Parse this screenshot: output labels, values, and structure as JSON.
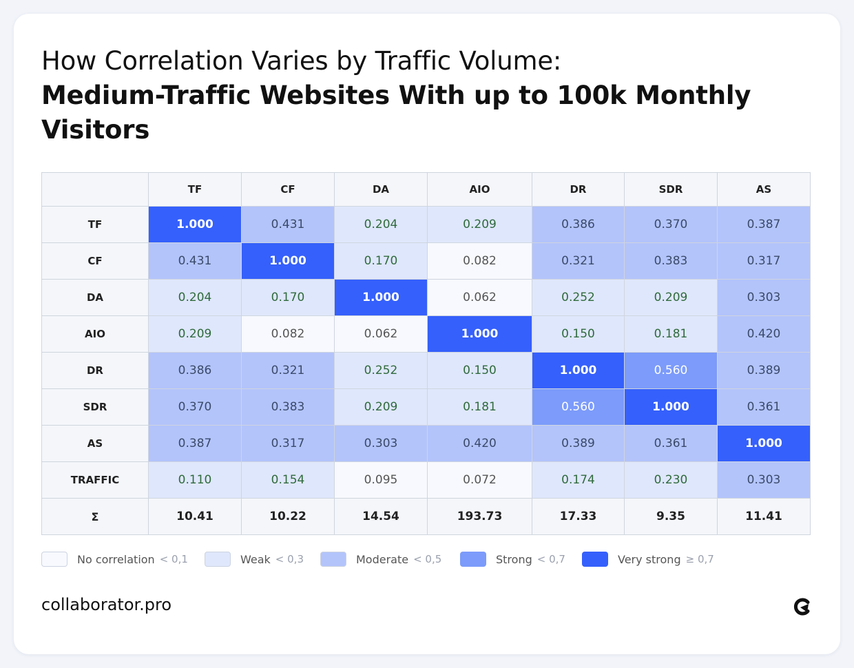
{
  "title": {
    "line1": "How Correlation Varies by Traffic Volume:",
    "line2": "Medium-Traffic Websites With up to 100k Monthly Visitors"
  },
  "chart_data": {
    "type": "heatmap",
    "columns": [
      "TF",
      "CF",
      "DA",
      "AIO",
      "DR",
      "SDR",
      "AS"
    ],
    "rows": [
      {
        "label": "TF",
        "values": [
          1.0,
          0.431,
          0.204,
          0.209,
          0.386,
          0.37,
          0.387
        ]
      },
      {
        "label": "CF",
        "values": [
          0.431,
          1.0,
          0.17,
          0.082,
          0.321,
          0.383,
          0.317
        ]
      },
      {
        "label": "DA",
        "values": [
          0.204,
          0.17,
          1.0,
          0.062,
          0.252,
          0.209,
          0.303
        ]
      },
      {
        "label": "AIO",
        "values": [
          0.209,
          0.082,
          0.062,
          1.0,
          0.15,
          0.181,
          0.42
        ]
      },
      {
        "label": "DR",
        "values": [
          0.386,
          0.321,
          0.252,
          0.15,
          1.0,
          0.56,
          0.389
        ]
      },
      {
        "label": "SDR",
        "values": [
          0.37,
          0.383,
          0.209,
          0.181,
          0.56,
          1.0,
          0.361
        ]
      },
      {
        "label": "AS",
        "values": [
          0.387,
          0.317,
          0.303,
          0.42,
          0.389,
          0.361,
          1.0
        ]
      },
      {
        "label": "TRAFFIC",
        "values": [
          0.11,
          0.154,
          0.095,
          0.072,
          0.174,
          0.23,
          0.303
        ]
      }
    ],
    "sum_row": {
      "label": "Σ",
      "values": [
        "10.41",
        "10.22",
        "14.54",
        "193.73",
        "17.33",
        "9.35",
        "11.41"
      ]
    },
    "legend": [
      {
        "label": "No correlation",
        "threshold": "< 0,1",
        "min": 0.0,
        "color": "#f7f9fe",
        "text_color": "#555555"
      },
      {
        "label": "Weak",
        "threshold": "< 0,3",
        "min": 0.1,
        "color": "#dfe7fc",
        "text_color": "#2f6a3c"
      },
      {
        "label": "Moderate",
        "threshold": "< 0,5",
        "min": 0.3,
        "color": "#b3c4fb",
        "text_color": "#3a4a6a"
      },
      {
        "label": "Strong",
        "threshold": "< 0,7",
        "min": 0.5,
        "color": "#7c9bfa",
        "text_color": "#ffffff"
      },
      {
        "label": "Very strong",
        "threshold": "≥ 0,7",
        "min": 0.7,
        "color": "#3560fb",
        "text_color": "#ffffff"
      }
    ]
  },
  "footer": {
    "brand": "collaborator.pro",
    "logo_icon": "collaborator-logo-icon"
  }
}
